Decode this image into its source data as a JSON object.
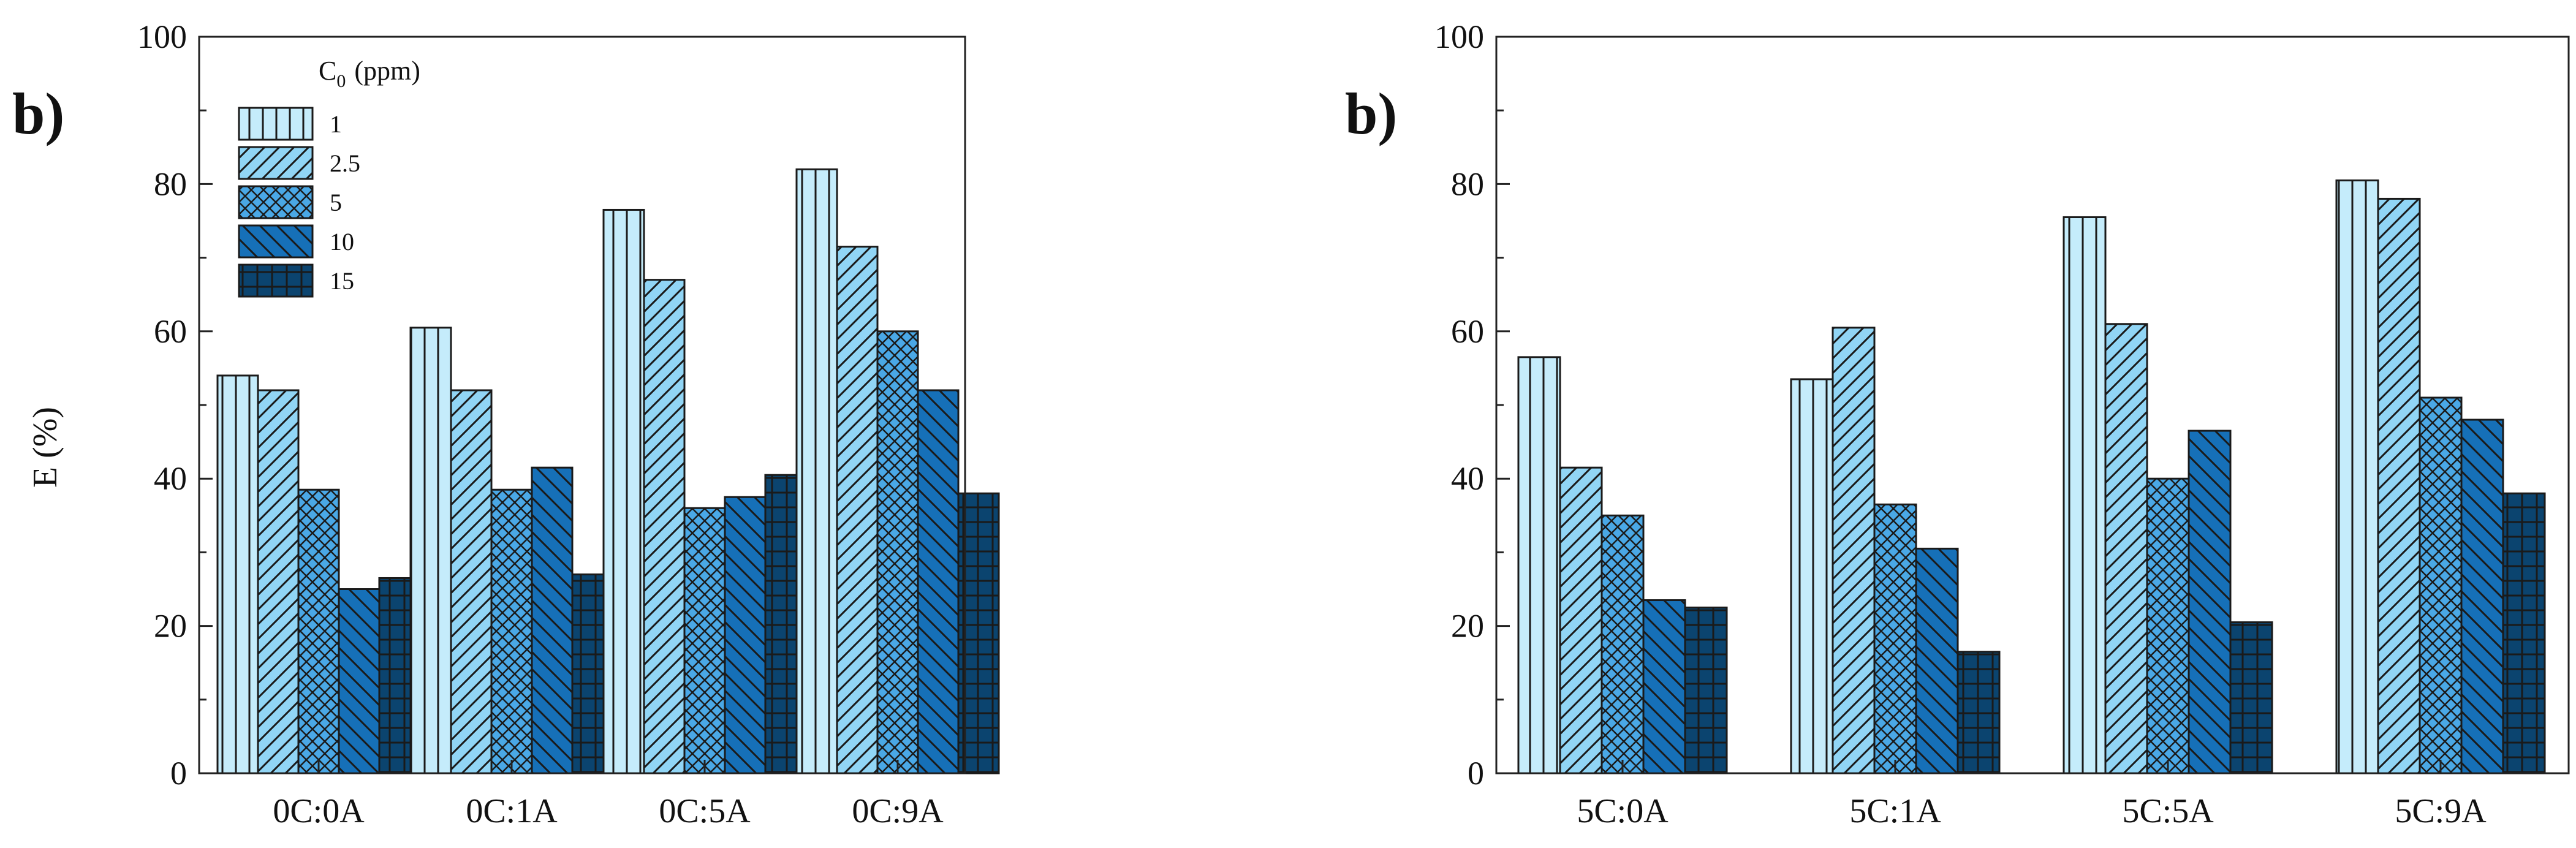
{
  "chart_data": [
    {
      "type": "bar",
      "panel_label": "b)",
      "categories": [
        "0C:0A",
        "0C:1A",
        "0C:5A",
        "0C:9A"
      ],
      "series": [
        {
          "name": "1",
          "values": [
            54,
            60.5,
            76.5,
            82
          ]
        },
        {
          "name": "2.5",
          "values": [
            52,
            52,
            67,
            71.5
          ]
        },
        {
          "name": "5",
          "values": [
            38.5,
            38.5,
            36,
            60
          ]
        },
        {
          "name": "10",
          "values": [
            25,
            41.5,
            37.5,
            52
          ]
        },
        {
          "name": "15",
          "values": [
            26.5,
            27,
            40.5,
            38
          ]
        }
      ],
      "ylabel": "E (%)",
      "ylim": [
        0,
        100
      ],
      "yticks": [
        "0",
        "20",
        "40",
        "60",
        "80",
        "100"
      ],
      "legend": {
        "title": "C0 (ppm)",
        "title_main": "C",
        "title_sub": "0",
        "title_unit": "(ppm)",
        "position": "top-left"
      }
    },
    {
      "type": "bar",
      "panel_label": "b)",
      "categories": [
        "5C:0A",
        "5C:1A",
        "5C:5A",
        "5C:9A"
      ],
      "series": [
        {
          "name": "1",
          "values": [
            56.5,
            53.5,
            75.5,
            80.5
          ]
        },
        {
          "name": "2.5",
          "values": [
            41.5,
            60.5,
            61,
            78
          ]
        },
        {
          "name": "5",
          "values": [
            35,
            36.5,
            40,
            51
          ]
        },
        {
          "name": "10",
          "values": [
            23.5,
            30.5,
            46.5,
            48
          ]
        },
        {
          "name": "15",
          "values": [
            22.5,
            16.5,
            20.5,
            38
          ]
        }
      ],
      "ylabel": "",
      "ylim": [
        0,
        100
      ],
      "yticks": [
        "0",
        "20",
        "40",
        "60",
        "80",
        "100"
      ]
    }
  ],
  "colors": [
    "#c5ecfb",
    "#91d5f5",
    "#4aa8e6",
    "#1670b8",
    "#0b446f"
  ]
}
